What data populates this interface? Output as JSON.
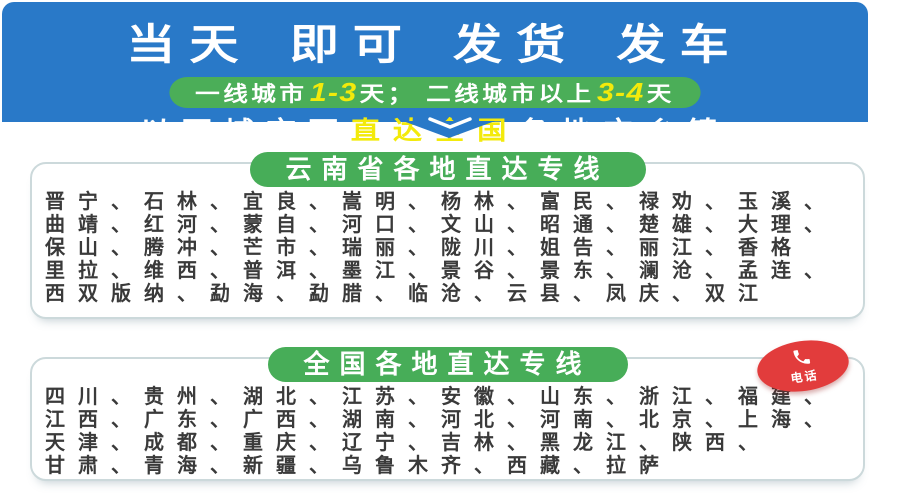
{
  "header": {
    "title": "当天 即可 发货 发车",
    "banner": {
      "segment1": "一线城市",
      "highlight1": "1-3",
      "segment2": "天；  二线城市以上",
      "highlight2": "3-4",
      "segment3": "天"
    },
    "subtitle": {
      "pre": "以下城市可",
      "highlight": "直达全国",
      "post": "各地方乡镇"
    }
  },
  "cards": [
    {
      "title": "云南省各地直达专线",
      "lines": [
        "晋宁、石林、宜良、嵩明、杨林、富民、禄劝、玉溪、",
        "曲靖、红河、蒙自、河口、文山、昭通、楚雄、大理、",
        "保山、腾冲、芒市、瑞丽、陇川、姐告、丽江、香格",
        "里拉、维西、普洱、墨江、景谷、景东、澜沧、孟连、",
        "西双版纳、勐海、勐腊、临沧、云县、凤庆、双江"
      ]
    },
    {
      "title": "全国各地直达专线",
      "lines": [
        "四川、贵州、湖北、江苏、安徽、山东、浙江、福建、",
        "江西、广东、广西、湖南、河北、河南、北京、上海、",
        "天津、成都、重庆、辽宁、吉林、黑龙江、陕西、",
        "甘肃、青海、新疆、乌鲁木齐、西藏、拉萨"
      ]
    }
  ],
  "phone_button": {
    "label": "电话",
    "icon": "phone-icon"
  },
  "colors": {
    "header_blue": "#2979C8",
    "accent_green": "#47AD58",
    "highlight_yellow": "#F3EA0B",
    "phone_red": "#E23C3C",
    "card_border": "#ccd9db"
  }
}
